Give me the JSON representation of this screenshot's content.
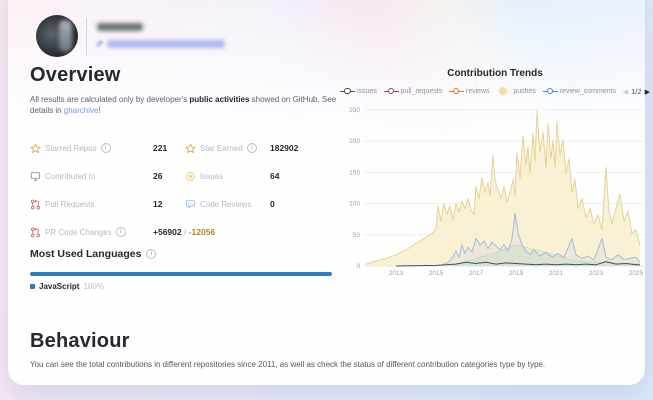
{
  "overview": {
    "title": "Overview",
    "description_prefix": "All results are calculated only by developer's ",
    "description_bold": "public activities",
    "description_mid": " showed on GitHub. See details in ",
    "description_link": "gharchive",
    "description_suffix": "!",
    "stats": [
      {
        "icon": "star-outline-icon",
        "label": "Starred Repos",
        "info": true,
        "value": "221"
      },
      {
        "icon": "star-outline-icon",
        "label": "Star Earned",
        "info": true,
        "value": "182902"
      },
      {
        "icon": "monitor-icon",
        "label": "Contributed to",
        "info": false,
        "value": "26"
      },
      {
        "icon": "issue-icon",
        "label": "Issues",
        "info": false,
        "value": "64"
      },
      {
        "icon": "pull-request-icon",
        "label": "Pull Requests",
        "info": false,
        "value": "12"
      },
      {
        "icon": "code-review-icon",
        "label": "Code Reviews",
        "info": false,
        "value": "0"
      },
      {
        "icon": "pull-request-icon",
        "label": "PR Code Changes",
        "info": true,
        "value_add": "+56902",
        "value_sep": " / ",
        "value_del": "-12056"
      }
    ]
  },
  "languages": {
    "title": "Most Used Languages",
    "items": [
      {
        "name": "JavaScript",
        "percent": "100%",
        "color": "#2e7cc3"
      }
    ]
  },
  "chart_data": {
    "type": "area",
    "title": "Contribution Trends",
    "legend_position": "top",
    "grid": true,
    "legend": [
      {
        "label": "issues",
        "color": "#4a4a4a",
        "style": "ring"
      },
      {
        "label": "pull_requests",
        "color": "#9e4247",
        "style": "ring"
      },
      {
        "label": "reviews",
        "color": "#cc7a30",
        "style": "ring"
      },
      {
        "label": "pushes",
        "color": "#eedc9e",
        "style": "soft"
      },
      {
        "label": "review_comments",
        "color": "#4f7fd9",
        "style": "ring"
      }
    ],
    "pager": {
      "prev_label": "◀",
      "page": "1/2",
      "next_label": "▶"
    },
    "x_range": [
      2011.4,
      2025.4
    ],
    "y_range": [
      0,
      250
    ],
    "y_ticks": [
      0,
      50,
      100,
      150,
      200,
      250
    ],
    "x_ticks": [
      2013,
      2015,
      2017,
      2019,
      2021,
      2023,
      2025
    ],
    "series": [
      {
        "name": "pushes",
        "color": "#e7d296",
        "fill": "rgba(248,238,205,0.85)",
        "width": 1,
        "points": [
          [
            2011.5,
            3
          ],
          [
            2012,
            8
          ],
          [
            2012.5,
            12
          ],
          [
            2013,
            18
          ],
          [
            2013.5,
            26
          ],
          [
            2014,
            36
          ],
          [
            2014.5,
            46
          ],
          [
            2014.9,
            55
          ],
          [
            2015.0,
            60
          ],
          [
            2015.1,
            96
          ],
          [
            2015.25,
            72
          ],
          [
            2015.4,
            100
          ],
          [
            2015.55,
            82
          ],
          [
            2015.7,
            96
          ],
          [
            2015.85,
            74
          ],
          [
            2016.0,
            100
          ],
          [
            2016.15,
            86
          ],
          [
            2016.3,
            104
          ],
          [
            2016.45,
            92
          ],
          [
            2016.6,
            108
          ],
          [
            2016.75,
            90
          ],
          [
            2016.9,
            82
          ],
          [
            2017.0,
            128
          ],
          [
            2017.15,
            108
          ],
          [
            2017.3,
            142
          ],
          [
            2017.45,
            118
          ],
          [
            2017.6,
            134
          ],
          [
            2017.7,
            112
          ],
          [
            2017.85,
            178
          ],
          [
            2017.95,
            138
          ],
          [
            2018.1,
            122
          ],
          [
            2018.25,
            108
          ],
          [
            2018.4,
            128
          ],
          [
            2018.55,
            102
          ],
          [
            2018.7,
            118
          ],
          [
            2018.85,
            138
          ],
          [
            2018.95,
            112
          ],
          [
            2019.05,
            182
          ],
          [
            2019.2,
            140
          ],
          [
            2019.35,
            208
          ],
          [
            2019.5,
            162
          ],
          [
            2019.6,
            192
          ],
          [
            2019.7,
            148
          ],
          [
            2019.85,
            212
          ],
          [
            2019.95,
            168
          ],
          [
            2020.05,
            248
          ],
          [
            2020.2,
            182
          ],
          [
            2020.35,
            214
          ],
          [
            2020.5,
            158
          ],
          [
            2020.6,
            228
          ],
          [
            2020.75,
            172
          ],
          [
            2020.85,
            202
          ],
          [
            2020.95,
            158
          ],
          [
            2021.05,
            232
          ],
          [
            2021.2,
            178
          ],
          [
            2021.35,
            202
          ],
          [
            2021.5,
            148
          ],
          [
            2021.65,
            172
          ],
          [
            2021.8,
            118
          ],
          [
            2021.95,
            138
          ],
          [
            2022.1,
            92
          ],
          [
            2022.3,
            108
          ],
          [
            2022.5,
            78
          ],
          [
            2022.7,
            92
          ],
          [
            2022.9,
            68
          ],
          [
            2023.1,
            82
          ],
          [
            2023.3,
            58
          ],
          [
            2023.5,
            158
          ],
          [
            2023.65,
            88
          ],
          [
            2023.8,
            68
          ],
          [
            2024.0,
            92
          ],
          [
            2024.2,
            116
          ],
          [
            2024.4,
            72
          ],
          [
            2024.6,
            88
          ],
          [
            2024.8,
            52
          ],
          [
            2025.0,
            58
          ],
          [
            2025.2,
            32
          ]
        ]
      },
      {
        "name": "reviews",
        "color": "#cfe2c4",
        "fill": "rgba(205,228,195,0.45)",
        "width": 1,
        "points": [
          [
            2015.8,
            2
          ],
          [
            2016.3,
            6
          ],
          [
            2016.8,
            10
          ],
          [
            2017.2,
            14
          ],
          [
            2017.6,
            18
          ],
          [
            2018.0,
            22
          ],
          [
            2018.5,
            28
          ],
          [
            2019.0,
            34
          ],
          [
            2019.5,
            30
          ],
          [
            2020.0,
            26
          ],
          [
            2020.5,
            22
          ],
          [
            2021.0,
            18
          ],
          [
            2021.5,
            12
          ],
          [
            2022.0,
            8
          ],
          [
            2022.8,
            6
          ],
          [
            2023.5,
            5
          ],
          [
            2024.2,
            4
          ],
          [
            2025.2,
            3
          ]
        ]
      },
      {
        "name": "review_comments",
        "color": "#a9b6e2",
        "fill": "rgba(176,188,228,0.18)",
        "width": 1,
        "points": [
          [
            2015.3,
            2
          ],
          [
            2015.6,
            6
          ],
          [
            2015.8,
            12
          ],
          [
            2016.0,
            24
          ],
          [
            2016.15,
            14
          ],
          [
            2016.3,
            34
          ],
          [
            2016.45,
            20
          ],
          [
            2016.6,
            30
          ],
          [
            2016.8,
            22
          ],
          [
            2017.0,
            44
          ],
          [
            2017.2,
            34
          ],
          [
            2017.4,
            40
          ],
          [
            2017.6,
            28
          ],
          [
            2017.8,
            38
          ],
          [
            2018.0,
            32
          ],
          [
            2018.2,
            26
          ],
          [
            2018.4,
            34
          ],
          [
            2018.6,
            24
          ],
          [
            2018.8,
            44
          ],
          [
            2018.95,
            84
          ],
          [
            2019.1,
            54
          ],
          [
            2019.3,
            34
          ],
          [
            2019.5,
            24
          ],
          [
            2019.7,
            18
          ],
          [
            2019.9,
            26
          ],
          [
            2020.2,
            16
          ],
          [
            2020.5,
            22
          ],
          [
            2020.8,
            14
          ],
          [
            2021.1,
            20
          ],
          [
            2021.4,
            14
          ],
          [
            2021.8,
            44
          ],
          [
            2022.0,
            18
          ],
          [
            2022.3,
            12
          ],
          [
            2022.6,
            16
          ],
          [
            2022.9,
            10
          ],
          [
            2023.3,
            44
          ],
          [
            2023.5,
            14
          ],
          [
            2023.8,
            10
          ],
          [
            2024.1,
            18
          ],
          [
            2024.4,
            10
          ],
          [
            2024.7,
            12
          ],
          [
            2025.0,
            14
          ],
          [
            2025.2,
            6
          ]
        ]
      },
      {
        "name": "issues",
        "color": "#3f5078",
        "fill": null,
        "width": 1,
        "points": [
          [
            2013,
            0
          ],
          [
            2015,
            1
          ],
          [
            2016,
            3
          ],
          [
            2016.5,
            6
          ],
          [
            2017,
            4
          ],
          [
            2017.5,
            6
          ],
          [
            2018,
            3
          ],
          [
            2018.5,
            5
          ],
          [
            2019,
            4
          ],
          [
            2019.5,
            3
          ],
          [
            2020,
            2
          ],
          [
            2020.5,
            3
          ],
          [
            2021,
            2
          ],
          [
            2021.5,
            3
          ],
          [
            2022,
            2
          ],
          [
            2022.5,
            3
          ],
          [
            2023,
            2
          ],
          [
            2023.5,
            7
          ],
          [
            2024,
            3
          ],
          [
            2024.5,
            4
          ],
          [
            2025,
            2
          ],
          [
            2025.2,
            2
          ]
        ]
      }
    ]
  },
  "behaviour": {
    "title": "Behaviour",
    "description": "You can see the total contributions in different repositories since 2011, as well as check the status of different contribution categories type by type."
  }
}
